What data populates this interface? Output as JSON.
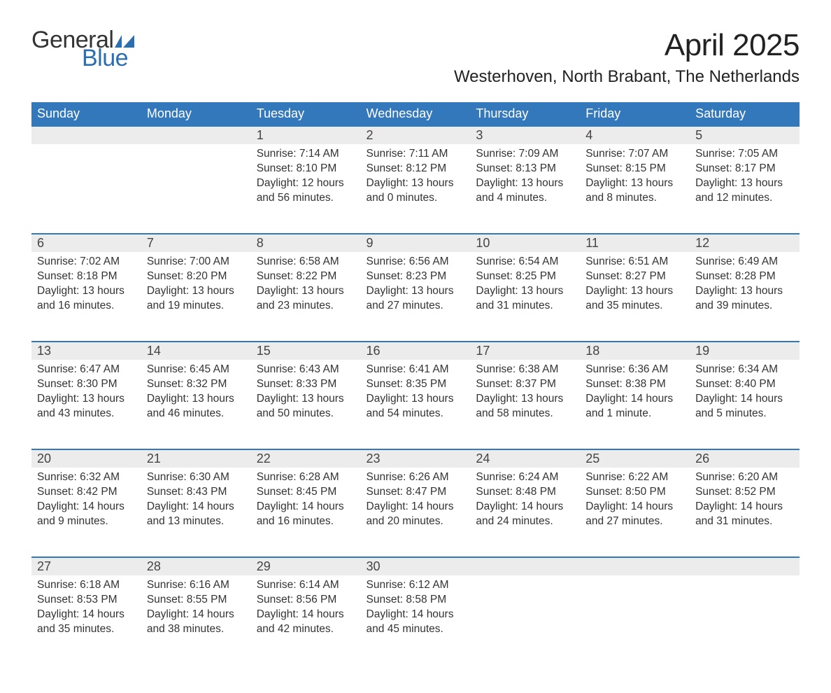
{
  "brand": {
    "word1": "General",
    "word2": "Blue",
    "word1_color": "#333333",
    "word2_color": "#2b6fb0",
    "flag_color": "#2b6fb0"
  },
  "title": "April 2025",
  "location": "Westerhoven, North Brabant, The Netherlands",
  "colors": {
    "header_bg": "#3478bc",
    "header_text": "#ffffff",
    "daynum_bg": "#ececec",
    "row_border": "#3478bc",
    "body_text": "#333333"
  },
  "day_headers": [
    "Sunday",
    "Monday",
    "Tuesday",
    "Wednesday",
    "Thursday",
    "Friday",
    "Saturday"
  ],
  "weeks": [
    [
      null,
      null,
      {
        "n": "1",
        "sunrise": "7:14 AM",
        "sunset": "8:10 PM",
        "daylight": "12 hours and 56 minutes."
      },
      {
        "n": "2",
        "sunrise": "7:11 AM",
        "sunset": "8:12 PM",
        "daylight": "13 hours and 0 minutes."
      },
      {
        "n": "3",
        "sunrise": "7:09 AM",
        "sunset": "8:13 PM",
        "daylight": "13 hours and 4 minutes."
      },
      {
        "n": "4",
        "sunrise": "7:07 AM",
        "sunset": "8:15 PM",
        "daylight": "13 hours and 8 minutes."
      },
      {
        "n": "5",
        "sunrise": "7:05 AM",
        "sunset": "8:17 PM",
        "daylight": "13 hours and 12 minutes."
      }
    ],
    [
      {
        "n": "6",
        "sunrise": "7:02 AM",
        "sunset": "8:18 PM",
        "daylight": "13 hours and 16 minutes."
      },
      {
        "n": "7",
        "sunrise": "7:00 AM",
        "sunset": "8:20 PM",
        "daylight": "13 hours and 19 minutes."
      },
      {
        "n": "8",
        "sunrise": "6:58 AM",
        "sunset": "8:22 PM",
        "daylight": "13 hours and 23 minutes."
      },
      {
        "n": "9",
        "sunrise": "6:56 AM",
        "sunset": "8:23 PM",
        "daylight": "13 hours and 27 minutes."
      },
      {
        "n": "10",
        "sunrise": "6:54 AM",
        "sunset": "8:25 PM",
        "daylight": "13 hours and 31 minutes."
      },
      {
        "n": "11",
        "sunrise": "6:51 AM",
        "sunset": "8:27 PM",
        "daylight": "13 hours and 35 minutes."
      },
      {
        "n": "12",
        "sunrise": "6:49 AM",
        "sunset": "8:28 PM",
        "daylight": "13 hours and 39 minutes."
      }
    ],
    [
      {
        "n": "13",
        "sunrise": "6:47 AM",
        "sunset": "8:30 PM",
        "daylight": "13 hours and 43 minutes."
      },
      {
        "n": "14",
        "sunrise": "6:45 AM",
        "sunset": "8:32 PM",
        "daylight": "13 hours and 46 minutes."
      },
      {
        "n": "15",
        "sunrise": "6:43 AM",
        "sunset": "8:33 PM",
        "daylight": "13 hours and 50 minutes."
      },
      {
        "n": "16",
        "sunrise": "6:41 AM",
        "sunset": "8:35 PM",
        "daylight": "13 hours and 54 minutes."
      },
      {
        "n": "17",
        "sunrise": "6:38 AM",
        "sunset": "8:37 PM",
        "daylight": "13 hours and 58 minutes."
      },
      {
        "n": "18",
        "sunrise": "6:36 AM",
        "sunset": "8:38 PM",
        "daylight": "14 hours and 1 minute."
      },
      {
        "n": "19",
        "sunrise": "6:34 AM",
        "sunset": "8:40 PM",
        "daylight": "14 hours and 5 minutes."
      }
    ],
    [
      {
        "n": "20",
        "sunrise": "6:32 AM",
        "sunset": "8:42 PM",
        "daylight": "14 hours and 9 minutes."
      },
      {
        "n": "21",
        "sunrise": "6:30 AM",
        "sunset": "8:43 PM",
        "daylight": "14 hours and 13 minutes."
      },
      {
        "n": "22",
        "sunrise": "6:28 AM",
        "sunset": "8:45 PM",
        "daylight": "14 hours and 16 minutes."
      },
      {
        "n": "23",
        "sunrise": "6:26 AM",
        "sunset": "8:47 PM",
        "daylight": "14 hours and 20 minutes."
      },
      {
        "n": "24",
        "sunrise": "6:24 AM",
        "sunset": "8:48 PM",
        "daylight": "14 hours and 24 minutes."
      },
      {
        "n": "25",
        "sunrise": "6:22 AM",
        "sunset": "8:50 PM",
        "daylight": "14 hours and 27 minutes."
      },
      {
        "n": "26",
        "sunrise": "6:20 AM",
        "sunset": "8:52 PM",
        "daylight": "14 hours and 31 minutes."
      }
    ],
    [
      {
        "n": "27",
        "sunrise": "6:18 AM",
        "sunset": "8:53 PM",
        "daylight": "14 hours and 35 minutes."
      },
      {
        "n": "28",
        "sunrise": "6:16 AM",
        "sunset": "8:55 PM",
        "daylight": "14 hours and 38 minutes."
      },
      {
        "n": "29",
        "sunrise": "6:14 AM",
        "sunset": "8:56 PM",
        "daylight": "14 hours and 42 minutes."
      },
      {
        "n": "30",
        "sunrise": "6:12 AM",
        "sunset": "8:58 PM",
        "daylight": "14 hours and 45 minutes."
      },
      null,
      null,
      null
    ]
  ],
  "labels": {
    "sunrise": "Sunrise: ",
    "sunset": "Sunset: ",
    "daylight": "Daylight: "
  }
}
